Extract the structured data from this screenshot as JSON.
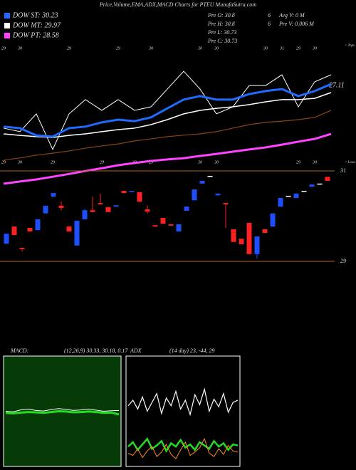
{
  "chart_data": [
    {
      "type": "line",
      "title": "Price,Volume,EMA,ADX,MACD Charts for PTEU MunafaSutra.com",
      "info": [
        [
          "Pre  O: 30.8",
          "6",
          "Avg V: 0  M"
        ],
        [
          "Pre  H: 30.8",
          "6",
          "Pre  V: 0.006  M"
        ],
        [
          "Pre  L: 30.73"
        ],
        [
          "Pre  C: 30.73"
        ]
      ],
      "tops_label": "< Tops",
      "lows_label": "< Lows",
      "annotation": "27.11",
      "categories": [
        "29",
        "30",
        null,
        null,
        "29",
        null,
        null,
        "29",
        null,
        "30",
        null,
        null,
        "30",
        "30",
        null,
        null,
        "30",
        "31",
        "29",
        "30",
        null
      ],
      "bottom_categories": [
        "29",
        "30",
        null,
        "29",
        null,
        null,
        "29",
        null,
        "30",
        "29",
        null,
        null,
        "30",
        "30",
        null,
        null,
        null,
        null,
        "29",
        "30",
        null
      ],
      "ylim": [
        25.2,
        31.0
      ],
      "series": [
        {
          "color": "#ffffff",
          "width": 1,
          "values": [
            27.59,
            27.45,
            28.16,
            26.74,
            28.16,
            28.73,
            28.3,
            28.73,
            28.3,
            28.44,
            29.15,
            29.86,
            29.15,
            28.16,
            28.44,
            29.29,
            29.29,
            29.72,
            28.44,
            29.44,
            29.72
          ]
        },
        {
          "color": "#8b4513",
          "width": 1.2,
          "values": [
            26.31,
            26.4,
            26.51,
            26.59,
            26.68,
            26.79,
            26.88,
            26.96,
            27.08,
            27.16,
            27.25,
            27.31,
            27.36,
            27.45,
            27.59,
            27.73,
            27.82,
            27.87,
            27.93,
            28.02,
            28.3
          ]
        },
        {
          "name": "DOW PT: 28.58",
          "color": "#ff44ff",
          "width": 3,
          "values": [
            25.37,
            25.46,
            25.54,
            25.65,
            25.76,
            25.88,
            25.99,
            26.11,
            26.2,
            26.28,
            26.34,
            26.39,
            26.48,
            26.56,
            26.65,
            26.74,
            26.82,
            26.93,
            27.05,
            27.16,
            27.36
          ]
        },
        {
          "name": "DOW MT: 29.97",
          "color": "#ffffff",
          "width": 1.5,
          "values": [
            27.36,
            27.3,
            27.25,
            27.22,
            27.3,
            27.36,
            27.45,
            27.53,
            27.59,
            27.73,
            27.93,
            28.16,
            28.3,
            28.38,
            28.44,
            28.53,
            28.64,
            28.73,
            28.73,
            28.78,
            29.01
          ]
        },
        {
          "name": "DOW ST: 30.23",
          "color": "#1e6cff",
          "width": 3,
          "values": [
            27.65,
            27.59,
            27.3,
            27.25,
            27.59,
            27.65,
            27.82,
            27.93,
            27.87,
            28.02,
            28.38,
            28.73,
            28.87,
            28.73,
            28.73,
            28.95,
            29.07,
            29.15,
            28.87,
            29.07,
            29.35
          ]
        }
      ]
    },
    {
      "type": "candlestick",
      "ylim": [
        29,
        31
      ],
      "yticks": [
        29,
        31
      ],
      "up_color": "#1e4fff",
      "down_color": "#ff2020",
      "flat_color": "#ffffff",
      "open": [
        29.39,
        29.77,
        29.3,
        29.74,
        29.69,
        30.06,
        30.43,
        30.23,
        29.77,
        29.35,
        29.93,
        30.13,
        30.29,
        30.2,
        30.21,
        30.56,
        30.54,
        30.53,
        30.15,
        29.8,
        29.96,
        29.82,
        29.66,
        30.12,
        30.35,
        30.72,
        30.89,
        30.46,
        30.29,
        29.71,
        29.5,
        29.85,
        29.16,
        29.71,
        29.77,
        30.21,
        30.45,
        30.4,
        30.56,
        30.65,
        30.72,
        30.87
      ],
      "high": [
        29.61,
        29.77,
        29.3,
        29.74,
        29.93,
        30.23,
        30.51,
        30.32,
        29.77,
        29.9,
        30.16,
        30.43,
        30.5,
        30.2,
        30.24,
        30.56,
        30.56,
        30.53,
        30.24,
        29.8,
        29.96,
        29.82,
        29.82,
        30.21,
        30.59,
        30.78,
        30.89,
        30.5,
        30.29,
        29.71,
        29.5,
        29.85,
        29.55,
        29.71,
        30.06,
        30.4,
        30.45,
        30.5,
        30.56,
        30.7,
        30.72,
        30.87
      ],
      "low": [
        29.39,
        29.58,
        29.22,
        29.66,
        29.69,
        30.06,
        30.43,
        30.13,
        29.66,
        29.35,
        29.93,
        30.09,
        30.26,
        30.09,
        30.21,
        30.51,
        30.54,
        30.32,
        30.06,
        29.77,
        29.83,
        29.79,
        29.66,
        30.12,
        30.35,
        30.72,
        30.89,
        30.46,
        29.74,
        29.43,
        29.38,
        29.16,
        29.06,
        29.63,
        29.77,
        30.21,
        30.45,
        30.4,
        30.56,
        30.65,
        30.72,
        30.78
      ],
      "close": [
        29.61,
        29.58,
        29.27,
        29.66,
        29.93,
        30.23,
        30.51,
        30.18,
        29.66,
        29.9,
        30.13,
        30.09,
        30.26,
        30.09,
        30.24,
        30.51,
        30.56,
        30.32,
        30.1,
        29.77,
        29.83,
        29.79,
        29.82,
        30.21,
        30.59,
        30.78,
        30.89,
        30.5,
        30.26,
        29.43,
        29.38,
        29.16,
        29.55,
        29.63,
        30.06,
        30.4,
        30.45,
        30.5,
        30.56,
        30.7,
        30.72,
        30.78
      ]
    },
    {
      "type": "line",
      "title": "MACD:",
      "subtitle": "(12,26,9) 30.33, 30.18, 0.17",
      "ylim": [
        28.2,
        32.4
      ],
      "background": "#063a06",
      "series": [
        {
          "color": "#22dd22",
          "width": 3,
          "values": [
            30.24,
            30.22,
            30.25,
            30.27,
            30.26,
            30.24,
            30.27,
            30.3,
            30.29,
            30.26,
            30.27,
            30.29,
            30.27,
            30.24,
            30.25,
            30.18
          ]
        },
        {
          "color": "#ffffff",
          "width": 1,
          "values": [
            30.3,
            30.28,
            30.35,
            30.38,
            30.33,
            30.31,
            30.36,
            30.4,
            30.37,
            30.33,
            30.35,
            30.38,
            30.34,
            30.3,
            30.32,
            30.33
          ]
        }
      ]
    },
    {
      "type": "line",
      "title": "ADX",
      "subtitle": "(14  day) 23, -44, 29",
      "ylim": [
        0,
        100
      ],
      "background": "#000000",
      "series": [
        {
          "color": "#ffffff",
          "width": 1.2,
          "values": [
            55,
            60,
            52,
            63,
            50,
            58,
            66,
            48,
            62,
            55,
            68,
            52,
            60,
            47,
            65,
            56,
            70,
            50,
            61,
            54,
            66,
            49,
            58,
            60
          ]
        },
        {
          "color": "#22dd22",
          "width": 2.5,
          "values": [
            18,
            22,
            15,
            20,
            25,
            16,
            19,
            23,
            14,
            21,
            18,
            24,
            17,
            20,
            15,
            22,
            19,
            16,
            23,
            18,
            21,
            15,
            20,
            19
          ]
        },
        {
          "color": "#ff8c1a",
          "width": 1,
          "values": [
            12,
            10,
            16,
            8,
            14,
            18,
            9,
            13,
            20,
            11,
            7,
            15,
            22,
            10,
            13,
            17,
            25,
            12,
            9,
            16,
            11,
            19,
            14,
            13
          ]
        }
      ]
    }
  ]
}
